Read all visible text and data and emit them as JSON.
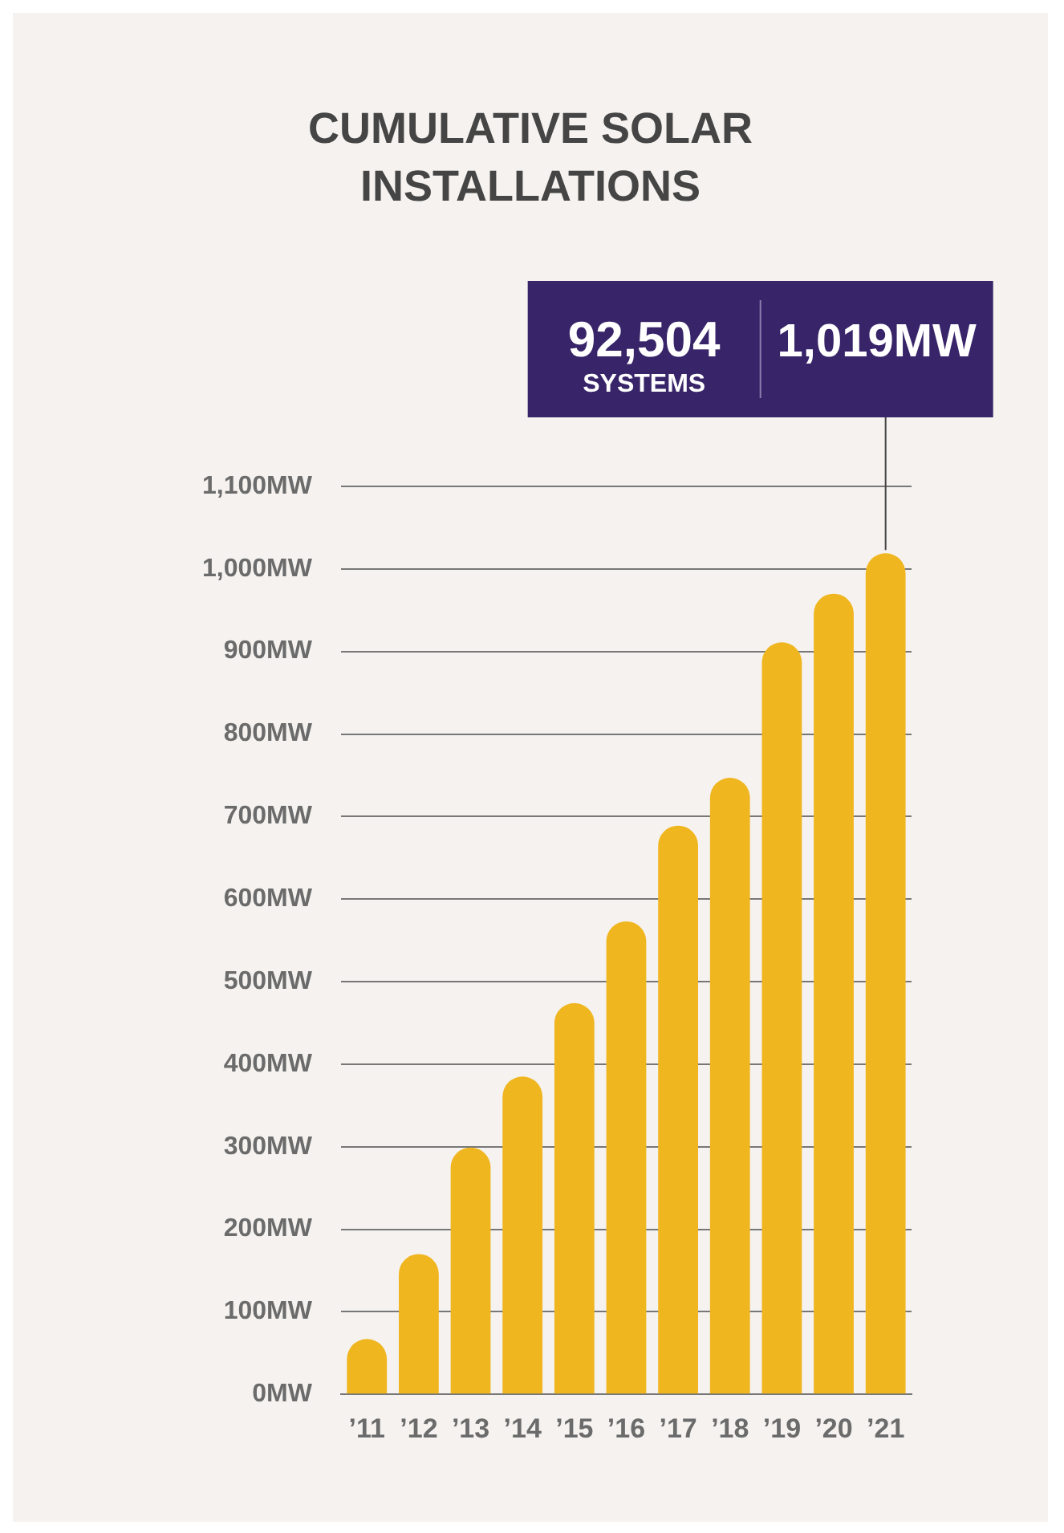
{
  "chart_data": {
    "type": "bar",
    "title": "CUMULATIVE SOLAR INSTALLATIONS",
    "categories": [
      "’11",
      "’12",
      "’13",
      "’14",
      "’15",
      "’16",
      "’17",
      "’18",
      "’19",
      "’20",
      "’21"
    ],
    "values": [
      67,
      170,
      299,
      385,
      474,
      573,
      689,
      747,
      911,
      970,
      1019
    ],
    "color": "#f0b61f",
    "ylim": [
      0,
      1100
    ],
    "yticks": [
      {
        "value": 0,
        "label": "0MW"
      },
      {
        "value": 100,
        "label": "100MW"
      },
      {
        "value": 200,
        "label": "200MW"
      },
      {
        "value": 300,
        "label": "300MW"
      },
      {
        "value": 400,
        "label": "400MW"
      },
      {
        "value": 500,
        "label": "500MW"
      },
      {
        "value": 600,
        "label": "600MW"
      },
      {
        "value": 700,
        "label": "700MW"
      },
      {
        "value": 800,
        "label": "800MW"
      },
      {
        "value": 900,
        "label": "900MW"
      },
      {
        "value": 1000,
        "label": "1,000MW"
      },
      {
        "value": 1100,
        "label": "1,100MW"
      }
    ],
    "grid": "y",
    "annotations": [
      "92,504 SYSTEMS",
      {
        "text": "1,019MW",
        "x": "’21",
        "y": 1019
      }
    ]
  }
}
